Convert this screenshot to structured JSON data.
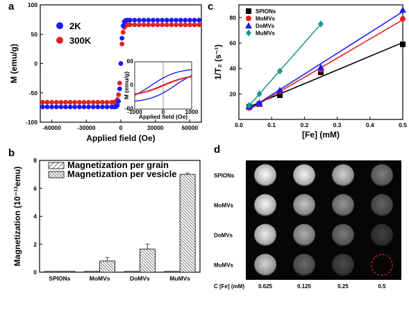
{
  "panels": {
    "a": "a",
    "b": "b",
    "c": "c",
    "d": "d"
  },
  "chart_data": [
    {
      "id": "a",
      "type": "scatter",
      "xlabel": "Applied field (Oe)",
      "ylabel": "M (emu/g)",
      "xlim": [
        -70000,
        70000
      ],
      "ylim": [
        -100,
        100
      ],
      "xticks": [
        "-60000",
        "-30000",
        "0",
        "30000",
        "60000"
      ],
      "xtick_values": [
        -60000,
        -30000,
        0,
        30000,
        60000
      ],
      "yticks": [
        "-100",
        "-50",
        "0",
        "50",
        "100"
      ],
      "ytick_values": [
        -100,
        -50,
        0,
        50,
        100
      ],
      "legend_position": "top-left",
      "series": [
        {
          "name": "2K",
          "color": "#1a1aff",
          "ms": 74,
          "scale": 1500
        },
        {
          "name": "300K",
          "color": "#e51f1f",
          "ms": 66,
          "scale": 1800
        }
      ],
      "inset": {
        "xlabel": "Applied field (Oe)",
        "ylabel": "M (emu/g)",
        "xlim": [
          -1000,
          1000
        ],
        "ylim": [
          -60,
          60
        ],
        "xticks": [
          "-1000",
          "0",
          "1000"
        ],
        "xtick_values": [
          -1000,
          0,
          1000
        ],
        "yticks": [
          "-60",
          "0",
          "60"
        ],
        "ytick_values": [
          -60,
          0,
          60
        ],
        "loops": [
          {
            "name": "2K",
            "color": "#1a1aff",
            "coercivity": 420,
            "ms": 38
          },
          {
            "name": "300K",
            "color": "#e51f1f",
            "coercivity": 30,
            "ms": 24
          }
        ]
      }
    },
    {
      "id": "b",
      "type": "bar",
      "ylabel": "Magnetization (10⁻¹³emu)",
      "ylim": [
        0,
        8
      ],
      "yticks": [
        "0",
        "2",
        "4",
        "6",
        "8"
      ],
      "ytick_values": [
        0,
        2,
        4,
        6,
        8
      ],
      "categories": [
        "SPIONs",
        "MoMVs",
        "DoMVs",
        "MuMVs"
      ],
      "legend_position": "top-left",
      "series": [
        {
          "name": "Magnetization per grain",
          "values": [
            0.02,
            0.02,
            0.02,
            0.02
          ],
          "errors": [
            0,
            0,
            0,
            0
          ]
        },
        {
          "name": "Magnetization per vesicle",
          "values": [
            0.02,
            0.8,
            1.65,
            7.0
          ],
          "errors": [
            0,
            0.25,
            0.35,
            0.1
          ]
        }
      ]
    },
    {
      "id": "c",
      "type": "scatter",
      "xlabel": "[Fe] (mM)",
      "ylabel": "1/T₂ (s⁻¹)",
      "xlim": [
        0,
        0.5
      ],
      "ylim": [
        0,
        90
      ],
      "xticks": [
        "0.0",
        "0.1",
        "0.2",
        "0.3",
        "0.4",
        "0.5"
      ],
      "xtick_values": [
        0,
        0.1,
        0.2,
        0.3,
        0.4,
        0.5
      ],
      "yticks": [
        "20",
        "40",
        "60",
        "80"
      ],
      "ytick_values": [
        20,
        40,
        60,
        80
      ],
      "legend_position": "top-left",
      "series": [
        {
          "name": "SPIONs",
          "color": "#000000",
          "marker": "square",
          "x": [
            0.03125,
            0.0625,
            0.125,
            0.25,
            0.5
          ],
          "y": [
            10,
            12,
            19,
            37,
            59
          ]
        },
        {
          "name": "MoMVs",
          "color": "#e51f1f",
          "marker": "circle",
          "x": [
            0.03125,
            0.0625,
            0.125,
            0.25,
            0.5
          ],
          "y": [
            9,
            12,
            22,
            39,
            79
          ]
        },
        {
          "name": "DoMVs",
          "color": "#1a1aff",
          "marker": "triangle",
          "x": [
            0.03125,
            0.0625,
            0.125,
            0.25,
            0.5
          ],
          "y": [
            10,
            13,
            23,
            41,
            86
          ]
        },
        {
          "name": "MuMVs",
          "color": "#1b9a8a",
          "marker": "diamond",
          "x": [
            0.03125,
            0.0625,
            0.125,
            0.25
          ],
          "y": [
            11,
            20,
            38,
            75
          ]
        }
      ]
    },
    {
      "id": "d",
      "type": "table",
      "rows": [
        "SPIONs",
        "MoMVs",
        "DoMVs",
        "MuMVs"
      ],
      "concentration_label": "C [Fe] (mM)",
      "columns": [
        "0.625",
        "0.125",
        "0.25",
        "0.5"
      ],
      "intensity": [
        [
          0.98,
          0.95,
          0.78,
          0.4
        ],
        [
          0.96,
          0.72,
          0.5,
          0.28
        ],
        [
          0.92,
          0.62,
          0.38,
          0.12
        ],
        [
          0.8,
          0.3,
          0.16,
          0.0
        ]
      ],
      "highlight_color": "#e51f1f"
    }
  ]
}
